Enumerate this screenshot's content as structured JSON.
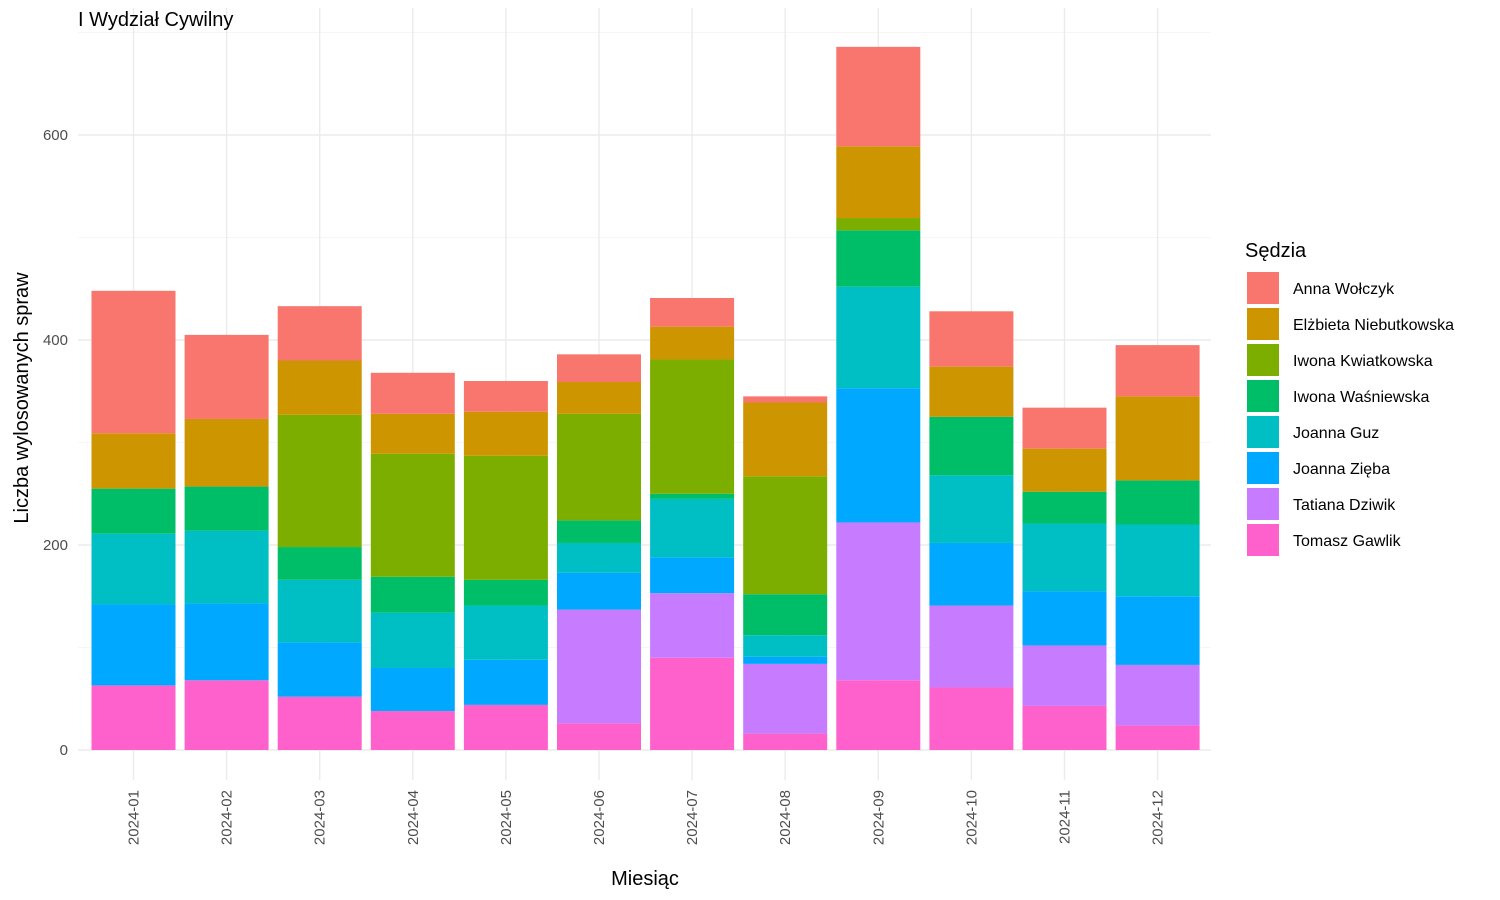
{
  "chart_data": {
    "type": "bar",
    "stacked": true,
    "title": "I Wydział Cywilny",
    "xlabel": "Miesiąc",
    "ylabel": "Liczba wylosowanych spraw",
    "ylim": [
      -30,
      700
    ],
    "yticks": [
      0,
      200,
      400,
      600
    ],
    "grid": true,
    "legend_title": "Sędzia",
    "legend_position": "right",
    "categories": [
      "2024-01",
      "2024-02",
      "2024-03",
      "2024-04",
      "2024-05",
      "2024-06",
      "2024-07",
      "2024-08",
      "2024-09",
      "2024-10",
      "2024-11",
      "2024-12"
    ],
    "series": [
      {
        "name": "Tomasz Gawlik",
        "color": "#FF61CC",
        "values": [
          63,
          68,
          52,
          38,
          44,
          26,
          90,
          16,
          68,
          61,
          43,
          24
        ]
      },
      {
        "name": "Tatiana Dziwik",
        "color": "#C77CFF",
        "values": [
          0,
          0,
          0,
          0,
          0,
          111,
          63,
          68,
          154,
          80,
          59,
          59
        ]
      },
      {
        "name": "Joanna Zięba",
        "color": "#00A9FF",
        "values": [
          79,
          75,
          53,
          42,
          44,
          36,
          35,
          7,
          131,
          61,
          53,
          67
        ]
      },
      {
        "name": "Joanna Guz",
        "color": "#00BFC4",
        "values": [
          69,
          71,
          61,
          54,
          53,
          29,
          57,
          21,
          99,
          66,
          66,
          70
        ]
      },
      {
        "name": "Iwona Waśniewska",
        "color": "#00BE67",
        "values": [
          44,
          43,
          32,
          35,
          25,
          22,
          5,
          40,
          55,
          57,
          31,
          43
        ]
      },
      {
        "name": "Iwona Kwiatkowska",
        "color": "#7CAE00",
        "values": [
          0,
          0,
          129,
          120,
          121,
          104,
          131,
          115,
          12,
          0,
          0,
          0
        ]
      },
      {
        "name": "Elżbieta Niebutkowska",
        "color": "#CD9600",
        "values": [
          54,
          66,
          53,
          39,
          43,
          31,
          32,
          72,
          70,
          49,
          42,
          82
        ]
      },
      {
        "name": "Anna Wołczyk",
        "color": "#F8766D",
        "values": [
          139,
          82,
          53,
          40,
          30,
          27,
          28,
          6,
          97,
          54,
          40,
          50
        ]
      }
    ],
    "legend_order": [
      "Anna Wołczyk",
      "Elżbieta Niebutkowska",
      "Iwona Kwiatkowska",
      "Iwona Waśniewska",
      "Joanna Guz",
      "Joanna Zięba",
      "Tatiana Dziwik",
      "Tomasz Gawlik"
    ]
  }
}
